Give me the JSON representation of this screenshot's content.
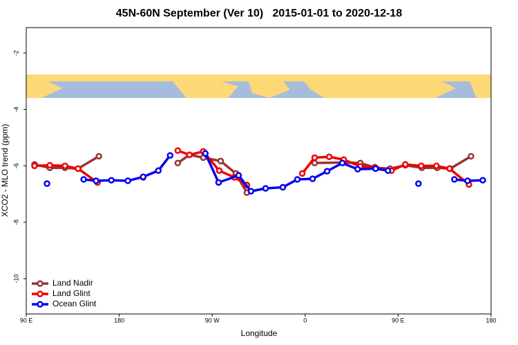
{
  "chart_data": {
    "type": "line",
    "title": "45N-60N September (Ver 10)   2015-01-01 to 2020-12-18",
    "x_label": "Longitude",
    "y_label": "XCO2 - MLO trend (ppm)",
    "xlim": [
      90,
      540
    ],
    "ylim": [
      -11.25,
      -1.1
    ],
    "xticks": [
      {
        "value": 90,
        "label": "90 E"
      },
      180,
      {
        "value": 270,
        "label": "90 W"
      },
      {
        "value": 360,
        "label": "0"
      },
      {
        "value": 450,
        "label": "90 E"
      },
      {
        "value": 540,
        "label": "180"
      }
    ],
    "yticks": [
      -2,
      -4,
      -6,
      -8,
      -10
    ],
    "legend": "bottom-left",
    "series": [
      {
        "name": "Land Nadir",
        "color": "#993333",
        "x": [
          98,
          112.8,
          127.5,
          140.2,
          160.3,
          null,
          236.7,
          248,
          261.4,
          278.2,
          292.9,
          303.6,
          null,
          369.2,
          397.4,
          413.4,
          428.2,
          442.2,
          457,
          473,
          487.8,
          500.5,
          520.6
        ],
        "values": [
          -5.95,
          -6.07,
          -6.07,
          -6.1,
          -5.66,
          null,
          -5.9,
          -5.61,
          -5.71,
          -5.83,
          -6.27,
          -6.95,
          null,
          -5.9,
          -5.88,
          -5.9,
          -6.07,
          -6.1,
          -5.98,
          -6.07,
          -6.07,
          -6.1,
          -5.66
        ]
      },
      {
        "name": "Land Glint",
        "color": "#ee0000",
        "x": [
          98,
          112.8,
          127.5,
          140.2,
          159,
          null,
          203.2,
          null,
          236.7,
          248,
          261.4,
          276.8,
          291.6,
          303.6,
          null,
          357.2,
          369.2,
          383.3,
          397.4,
          413.4,
          427.5,
          443.6,
          457,
          472.4,
          487.1,
          499.8,
          518.6
        ],
        "values": [
          -6,
          -5.98,
          -6,
          -6.1,
          -6.59,
          null,
          -6.41,
          null,
          -5.46,
          -5.61,
          -5.49,
          -6.17,
          -6.41,
          -6.68,
          null,
          -6.27,
          -5.71,
          -5.68,
          -5.78,
          -6.02,
          -6.05,
          -6.17,
          -5.95,
          -6,
          -6,
          -6.1,
          -6.66
        ]
      },
      {
        "name": "Ocean Glint",
        "color": "#0000ee",
        "x": [
          110.1,
          null,
          145.6,
          157.6,
          172.4,
          188.4,
          203.2,
          217.9,
          229.3,
          null,
          263.4,
          276.2,
          295.6,
          307.6,
          321.7,
          338.4,
          352.5,
          367.2,
          381.3,
          396,
          410.8,
          428.2,
          440.2,
          null,
          469.7,
          null,
          504.5,
          517.2,
          532
        ],
        "values": [
          -6.63,
          null,
          -6.48,
          -6.53,
          -6.51,
          -6.53,
          -6.39,
          -6.17,
          -5.63,
          null,
          -5.56,
          -6.59,
          -6.34,
          -6.9,
          -6.8,
          -6.76,
          -6.48,
          -6.46,
          -6.19,
          -5.9,
          -6.12,
          -6.1,
          -6.17,
          null,
          -6.63,
          null,
          -6.48,
          -6.53,
          -6.51
        ]
      }
    ]
  }
}
